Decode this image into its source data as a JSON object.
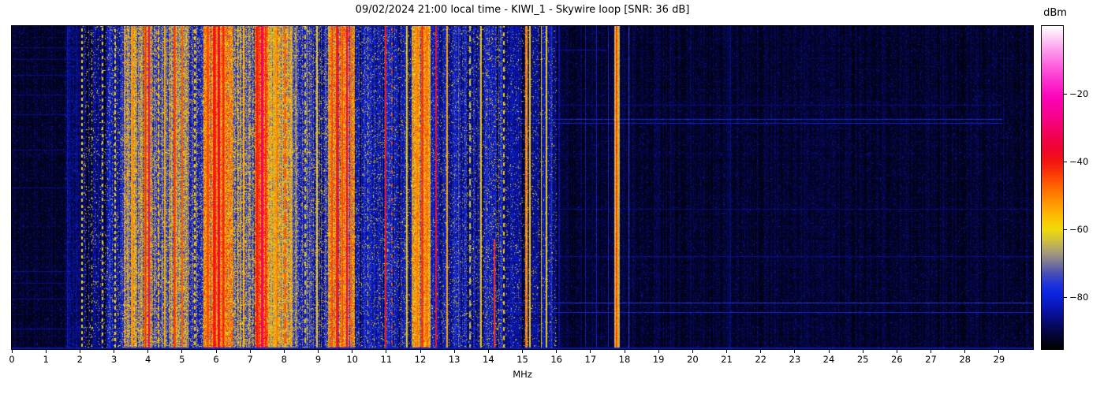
{
  "chart_data": {
    "type": "heatmap",
    "subtype": "radio-spectrogram-waterfall",
    "title": "09/02/2024 21:00 local time - KIWI_1 - Skywire loop [SNR: 36 dB]",
    "datetime_label": "09/02/2024 21:00 local time",
    "station": "KIWI_1",
    "antenna": "Skywire loop",
    "snr_db": 36,
    "xlabel": "MHz",
    "colorbar_label": "dBm",
    "xlim": [
      0,
      30
    ],
    "x_ticks": [
      0,
      1,
      2,
      3,
      4,
      5,
      6,
      7,
      8,
      9,
      10,
      11,
      12,
      13,
      14,
      15,
      16,
      17,
      18,
      19,
      20,
      21,
      22,
      23,
      24,
      25,
      26,
      27,
      28,
      29
    ],
    "y_axis": "time (unlabeled)",
    "clim": [
      -95.3,
      0
    ],
    "colorbar_ticks": [
      {
        "v": -20,
        "label": "−20"
      },
      {
        "v": -40,
        "label": "−40"
      },
      {
        "v": -60,
        "label": "−60"
      },
      {
        "v": -80,
        "label": "−80"
      }
    ],
    "colormap_stops": [
      [
        -95.3,
        "#000000"
      ],
      [
        -91,
        "#04053a"
      ],
      [
        -87,
        "#070b78"
      ],
      [
        -83,
        "#0716b4"
      ],
      [
        -79,
        "#0b24e0"
      ],
      [
        -76,
        "#2136d8"
      ],
      [
        -73,
        "#4a50b4"
      ],
      [
        -70,
        "#767698"
      ],
      [
        -67,
        "#a59a7c"
      ],
      [
        -63,
        "#d3c33a"
      ],
      [
        -60,
        "#efdc09"
      ],
      [
        -56,
        "#fdbb02"
      ],
      [
        -52,
        "#ff9501"
      ],
      [
        -48,
        "#ff6b00"
      ],
      [
        -44,
        "#fc3f05"
      ],
      [
        -40,
        "#f31511"
      ],
      [
        -36,
        "#ef0330"
      ],
      [
        -31,
        "#f20260"
      ],
      [
        -26,
        "#f70291"
      ],
      [
        -21,
        "#fb04b9"
      ],
      [
        -16,
        "#fc31d0"
      ],
      [
        -11,
        "#fd69e0"
      ],
      [
        -6,
        "#feaaef"
      ],
      [
        0,
        "#ffffff"
      ]
    ],
    "seed": 20240902,
    "regions": [
      {
        "f0": 0.0,
        "f1": 1.55,
        "base": -92.5,
        "var": 2.5,
        "sp": 0.05,
        "spike": -85,
        "rs": 0.5
      },
      {
        "f0": 1.55,
        "f1": 2.08,
        "base": -89.0,
        "var": 4.0,
        "sp": 0.08,
        "spike": -80,
        "rs": 0.6
      },
      {
        "f0": 2.08,
        "f1": 2.8,
        "base": -86.5,
        "var": 5.0,
        "sp": 0.06,
        "spike": -63,
        "rs": 0.8
      },
      {
        "f0": 2.8,
        "f1": 3.28,
        "base": -80.0,
        "var": 6.0,
        "sp": 0.1,
        "spike": -61,
        "rs": 1.0
      },
      {
        "f0": 3.28,
        "f1": 4.15,
        "base": -66.0,
        "var": 10.0,
        "sp": 0.22,
        "spike": -52,
        "rs": 1.0
      },
      {
        "f0": 4.15,
        "f1": 4.62,
        "base": -75.0,
        "var": 9.0,
        "sp": 0.15,
        "spike": -57,
        "rs": 1.0
      },
      {
        "f0": 4.62,
        "f1": 5.18,
        "base": -67.0,
        "var": 10.0,
        "sp": 0.2,
        "spike": -53,
        "rs": 1.0
      },
      {
        "f0": 5.18,
        "f1": 5.62,
        "base": -77.0,
        "var": 8.0,
        "sp": 0.14,
        "spike": -58,
        "rs": 1.0
      },
      {
        "f0": 5.62,
        "f1": 6.48,
        "base": -56.0,
        "var": 10.0,
        "sp": 0.25,
        "spike": -44,
        "rs": 1.0
      },
      {
        "f0": 6.48,
        "f1": 7.14,
        "base": -70.0,
        "var": 10.0,
        "sp": 0.2,
        "spike": -55,
        "rs": 1.0
      },
      {
        "f0": 7.14,
        "f1": 7.52,
        "base": -52.0,
        "var": 9.0,
        "sp": 0.28,
        "spike": -40,
        "rs": 1.0
      },
      {
        "f0": 7.52,
        "f1": 8.24,
        "base": -64.0,
        "var": 10.0,
        "sp": 0.18,
        "spike": -52,
        "rs": 1.0
      },
      {
        "f0": 8.24,
        "f1": 9.28,
        "base": -78.0,
        "var": 8.0,
        "sp": 0.12,
        "spike": -58,
        "rs": 1.0
      },
      {
        "f0": 9.28,
        "f1": 10.08,
        "base": -58.0,
        "var": 10.0,
        "sp": 0.25,
        "spike": -45,
        "rs": 1.0
      },
      {
        "f0": 10.08,
        "f1": 11.75,
        "base": -81.0,
        "var": 6.0,
        "sp": 0.08,
        "spike": -62,
        "rs": 0.9
      },
      {
        "f0": 11.75,
        "f1": 12.3,
        "base": -59.0,
        "var": 9.0,
        "sp": 0.22,
        "spike": -47,
        "rs": 1.0
      },
      {
        "f0": 12.3,
        "f1": 13.92,
        "base": -83.0,
        "var": 6.0,
        "sp": 0.07,
        "spike": -62,
        "rs": 0.9
      },
      {
        "f0": 13.92,
        "f1": 14.4,
        "base": -80.0,
        "var": 6.0,
        "sp": 0.1,
        "spike": -60,
        "rs": 0.9
      },
      {
        "f0": 14.4,
        "f1": 16.0,
        "base": -85.5,
        "var": 5.0,
        "sp": 0.05,
        "spike": -63,
        "rs": 0.8
      },
      {
        "f0": 16.0,
        "f1": 30.01,
        "base": -92.0,
        "var": 3.0,
        "sp": 0.03,
        "spike": -84,
        "rs": 0.4
      }
    ],
    "vlines": [
      {
        "f": 1.63,
        "w": 1.5,
        "p": -81
      },
      {
        "f": 2.06,
        "w": 2.0,
        "p": -57,
        "dash": [
          4,
          4
        ]
      },
      {
        "f": 2.35,
        "w": 1.5,
        "p": -61,
        "dash": [
          3,
          8
        ]
      },
      {
        "f": 2.66,
        "w": 2.0,
        "p": -58,
        "dash": [
          4,
          5
        ]
      },
      {
        "f": 3.03,
        "w": 2.0,
        "p": -58,
        "dash": [
          4,
          4
        ]
      },
      {
        "f": 3.55,
        "w": 2.5,
        "p": -51
      },
      {
        "f": 3.92,
        "w": 3.0,
        "p": -43
      },
      {
        "f": 4.04,
        "w": 2.0,
        "p": -34
      },
      {
        "f": 4.31,
        "w": 2.0,
        "p": -55,
        "dash": [
          6,
          4
        ]
      },
      {
        "f": 4.49,
        "w": 2.0,
        "p": -53
      },
      {
        "f": 4.78,
        "w": 3.0,
        "p": -43
      },
      {
        "f": 5.01,
        "w": 2.0,
        "p": -46
      },
      {
        "f": 5.38,
        "w": 2.0,
        "p": -56,
        "dash": [
          5,
          4
        ]
      },
      {
        "f": 5.76,
        "w": 2.5,
        "p": -45
      },
      {
        "f": 5.95,
        "w": 4.0,
        "p": -39
      },
      {
        "f": 6.08,
        "w": 3.5,
        "p": -36
      },
      {
        "f": 6.21,
        "w": 3.0,
        "p": -41
      },
      {
        "f": 6.82,
        "w": 2.0,
        "p": -53
      },
      {
        "f": 7.21,
        "w": 3.0,
        "p": -40
      },
      {
        "f": 7.36,
        "w": 3.5,
        "p": -29
      },
      {
        "f": 7.47,
        "w": 2.0,
        "p": -41
      },
      {
        "f": 7.79,
        "w": 2.0,
        "p": -49
      },
      {
        "f": 8.03,
        "w": 2.5,
        "p": -45,
        "dash": [
          14,
          5
        ]
      },
      {
        "f": 8.35,
        "w": 1.5,
        "p": -59
      },
      {
        "f": 8.62,
        "w": 1.5,
        "p": -61,
        "dash": [
          6,
          6
        ]
      },
      {
        "f": 8.96,
        "w": 2.0,
        "p": -57
      },
      {
        "f": 9.41,
        "w": 2.5,
        "p": -45
      },
      {
        "f": 9.56,
        "w": 3.5,
        "p": -39
      },
      {
        "f": 9.71,
        "w": 2.0,
        "p": -45
      },
      {
        "f": 9.84,
        "w": 2.5,
        "p": -31
      },
      {
        "f": 9.96,
        "w": 2.0,
        "p": -48
      },
      {
        "f": 10.46,
        "w": 1.5,
        "p": -63,
        "dash": [
          5,
          7
        ]
      },
      {
        "f": 10.97,
        "w": 2.0,
        "p": -37,
        "var": 6
      },
      {
        "f": 11.17,
        "w": 2.0,
        "p": -44,
        "dash": [
          3,
          15
        ]
      },
      {
        "f": 11.61,
        "w": 2.0,
        "p": -56
      },
      {
        "f": 11.91,
        "w": 2.0,
        "p": -51
      },
      {
        "f": 12.06,
        "w": 3.0,
        "p": -42
      },
      {
        "f": 12.19,
        "w": 2.0,
        "p": -50
      },
      {
        "f": 12.47,
        "w": 2.0,
        "p": -37,
        "var": 5
      },
      {
        "f": 12.79,
        "w": 2.0,
        "p": -52
      },
      {
        "f": 13.12,
        "w": 1.5,
        "p": -73
      },
      {
        "f": 13.46,
        "w": 1.5,
        "p": -62,
        "dash": [
          8,
          6
        ]
      },
      {
        "f": 13.79,
        "w": 2.0,
        "p": -56
      },
      {
        "f": 14.17,
        "w": 2.0,
        "p": -41,
        "y": [
          0.66,
          1.0
        ]
      },
      {
        "f": 14.46,
        "w": 2.0,
        "p": -58,
        "dash": [
          5,
          6
        ]
      },
      {
        "f": 15.11,
        "w": 3.0,
        "p": -50,
        "var": 6
      },
      {
        "f": 15.22,
        "w": 2.0,
        "p": -56
      },
      {
        "f": 15.56,
        "w": 1.5,
        "p": -60
      },
      {
        "f": 15.71,
        "w": 1.5,
        "p": -57
      },
      {
        "f": 15.86,
        "w": 1.5,
        "p": -76
      },
      {
        "f": 16.08,
        "w": 1.5,
        "p": -82
      },
      {
        "f": 16.86,
        "w": 1.2,
        "p": -81
      },
      {
        "f": 17.17,
        "w": 1.2,
        "p": -79
      },
      {
        "f": 17.53,
        "w": 1.2,
        "p": -78
      },
      {
        "f": 17.77,
        "w": 7.0,
        "p": -62
      },
      {
        "f": 17.77,
        "w": 4.5,
        "p": -53
      },
      {
        "f": 17.76,
        "w": 2.2,
        "p": -43,
        "var": 5
      },
      {
        "f": 18.12,
        "w": 1.2,
        "p": -74
      },
      {
        "f": 19.35,
        "w": 1.0,
        "p": -86
      },
      {
        "f": 21.12,
        "w": 1.0,
        "p": -85
      },
      {
        "f": 23.3,
        "w": 1.0,
        "p": -87
      },
      {
        "f": 26.1,
        "w": 1.0,
        "p": -87
      }
    ],
    "hlines": [
      {
        "y": 0.289,
        "f0": 14.9,
        "f1": 29.1,
        "p": -78
      },
      {
        "y": 0.3,
        "f0": 14.9,
        "f1": 29.1,
        "p": -80
      },
      {
        "y": 0.244,
        "f0": 16.0,
        "f1": 29.1,
        "p": -86
      },
      {
        "y": 0.568,
        "f0": 16.0,
        "f1": 30.0,
        "p": -86
      },
      {
        "y": 0.714,
        "f0": 16.0,
        "f1": 30.0,
        "p": -85
      },
      {
        "y": 0.859,
        "f0": 14.4,
        "f1": 30.0,
        "p": -76
      },
      {
        "y": 0.888,
        "f0": 14.4,
        "f1": 30.0,
        "p": -79
      },
      {
        "y": 0.073,
        "f0": 15.7,
        "f1": 17.5,
        "p": -84
      },
      {
        "y": 0.066,
        "f0": 0.0,
        "f1": 2.08,
        "p": -86
      },
      {
        "y": 0.102,
        "f0": 0.0,
        "f1": 2.08,
        "p": -87
      },
      {
        "y": 0.151,
        "f0": 0.0,
        "f1": 2.08,
        "p": -86
      },
      {
        "y": 0.212,
        "f0": 0.0,
        "f1": 2.08,
        "p": -87
      },
      {
        "y": 0.273,
        "f0": 0.0,
        "f1": 2.08,
        "p": -86
      },
      {
        "y": 0.383,
        "f0": 0.0,
        "f1": 2.08,
        "p": -87
      },
      {
        "y": 0.5,
        "f0": 0.0,
        "f1": 2.08,
        "p": -87
      },
      {
        "y": 0.761,
        "f0": 0.0,
        "f1": 2.08,
        "p": -85
      },
      {
        "y": 0.798,
        "f0": 0.0,
        "f1": 2.08,
        "p": -86
      },
      {
        "y": 0.846,
        "f0": 0.0,
        "f1": 2.08,
        "p": -86
      },
      {
        "y": 0.939,
        "f0": 0.0,
        "f1": 2.08,
        "p": -85
      }
    ]
  }
}
